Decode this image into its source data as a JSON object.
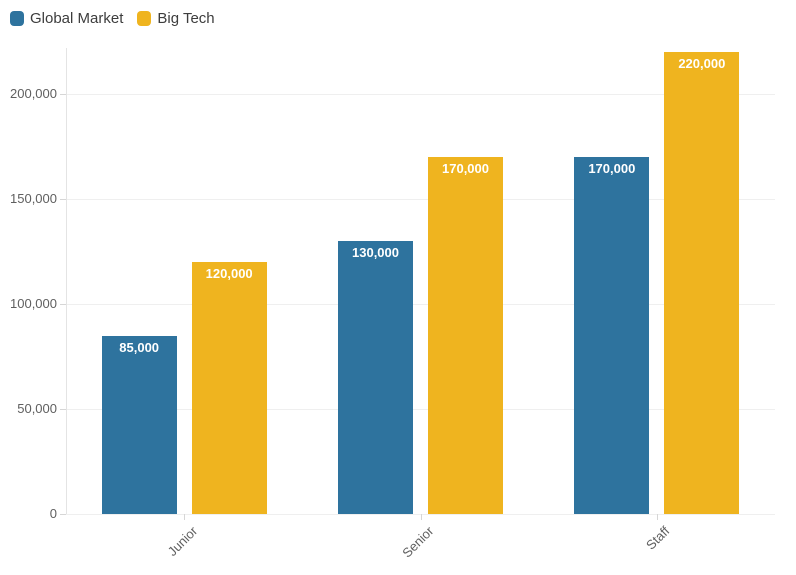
{
  "chart_data": {
    "type": "bar",
    "title": "",
    "xlabel": "",
    "ylabel": "",
    "categories": [
      "Junior",
      "Senior",
      "Staff"
    ],
    "series": [
      {
        "name": "Global Market",
        "color": "#2E739E",
        "values": [
          85000,
          130000,
          170000
        ],
        "data_labels": [
          "85,000",
          "130,000",
          "170,000"
        ]
      },
      {
        "name": "Big Tech",
        "color": "#EFB41F",
        "values": [
          120000,
          170000,
          220000
        ],
        "data_labels": [
          "120,000",
          "170,000",
          "220,000"
        ]
      }
    ],
    "ylim": [
      0,
      220000
    ],
    "y_ticks": [
      0,
      50000,
      100000,
      150000,
      200000
    ],
    "y_tick_labels": [
      "0",
      "50,000",
      "100,000",
      "150,000",
      "200,000"
    ],
    "x_label_rotation": 45,
    "grid": true,
    "legend_position": "top-left"
  },
  "styles": {
    "background": "#ffffff",
    "bar_label_color": "#ffffff",
    "axis_label_color": "#5f5f5f",
    "legend_text_color": "#3d3d3d",
    "gridline_color": "#efefef",
    "axis_line_color": "#e4e4e4"
  }
}
